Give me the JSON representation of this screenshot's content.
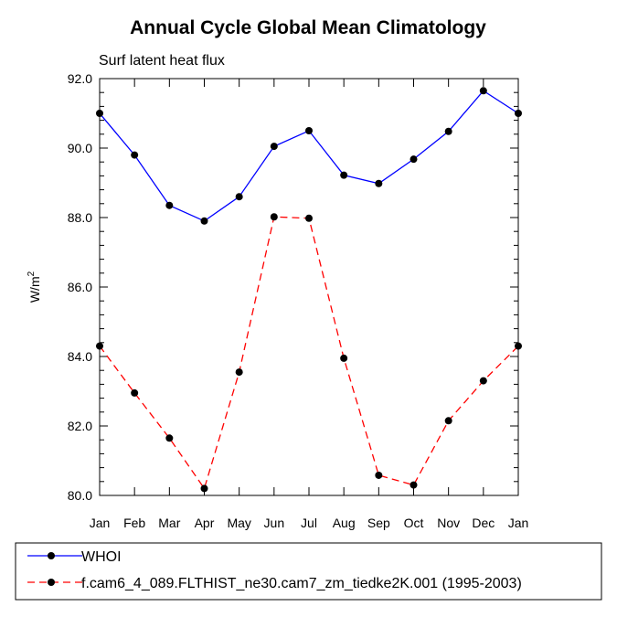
{
  "chart_data": {
    "type": "line",
    "title": "Annual Cycle Global Mean Climatology",
    "subtitle": "Surf latent heat flux",
    "ylabel_base": "W/m",
    "ylabel_exp": "2",
    "ylim": [
      80.0,
      92.0
    ],
    "yticks": [
      "80.0",
      "82.0",
      "84.0",
      "86.0",
      "88.0",
      "90.0",
      "92.0"
    ],
    "categories": [
      "Jan",
      "Feb",
      "Mar",
      "Apr",
      "May",
      "Jun",
      "Jul",
      "Aug",
      "Sep",
      "Oct",
      "Nov",
      "Dec",
      "Jan"
    ],
    "series": [
      {
        "name": "WHOI",
        "color": "#0000ff",
        "dash": "solid",
        "values": [
          91.0,
          89.8,
          88.35,
          87.9,
          88.6,
          90.05,
          90.5,
          89.22,
          88.98,
          89.68,
          90.48,
          91.65,
          91.0
        ]
      },
      {
        "name": "f.cam6_4_089.FLTHIST_ne30.cam7_zm_tiedke2K.001 (1995-2003)",
        "color": "#ff0000",
        "dash": "dashed",
        "values": [
          84.3,
          82.95,
          81.65,
          80.2,
          83.55,
          88.02,
          87.98,
          83.95,
          80.58,
          80.3,
          82.15,
          83.3,
          84.3
        ]
      }
    ]
  }
}
